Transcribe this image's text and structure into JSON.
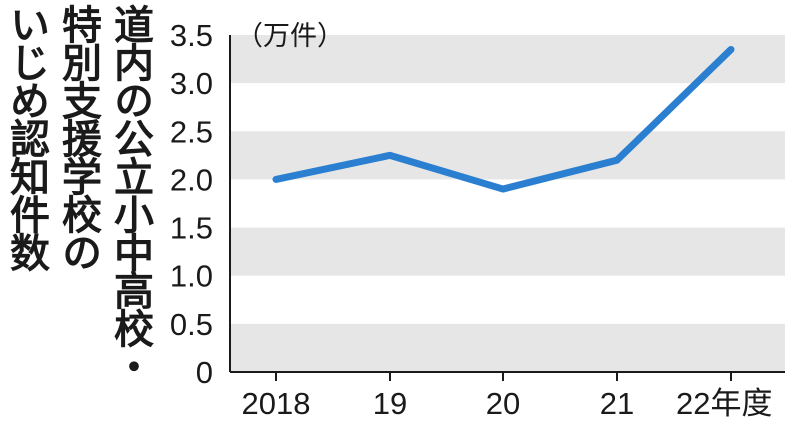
{
  "title_lines": [
    "道内の公立小中高校・",
    "特別支援学校の",
    "いじめ認知件数"
  ],
  "unit_label": "（万件）",
  "colors": {
    "line": "#2b7fd0",
    "band": "#e6e6e6",
    "axis": "#1a1a1a",
    "text": "#1a1a1a"
  },
  "chart_data": {
    "type": "line",
    "title": "道内の公立小中高校・特別支援学校のいじめ認知件数",
    "ylabel": "（万件）",
    "categories": [
      "2018",
      "19",
      "20",
      "21",
      "22年度"
    ],
    "y_ticks": [
      "0",
      "0.5",
      "1.0",
      "1.5",
      "2.0",
      "2.5",
      "3.0",
      "3.5"
    ],
    "ylim": [
      0,
      3.5
    ],
    "series": [
      {
        "values": [
          2.0,
          2.25,
          1.9,
          2.2,
          3.35
        ]
      }
    ],
    "grid": "alternating horizontal bands",
    "legend": "none"
  }
}
